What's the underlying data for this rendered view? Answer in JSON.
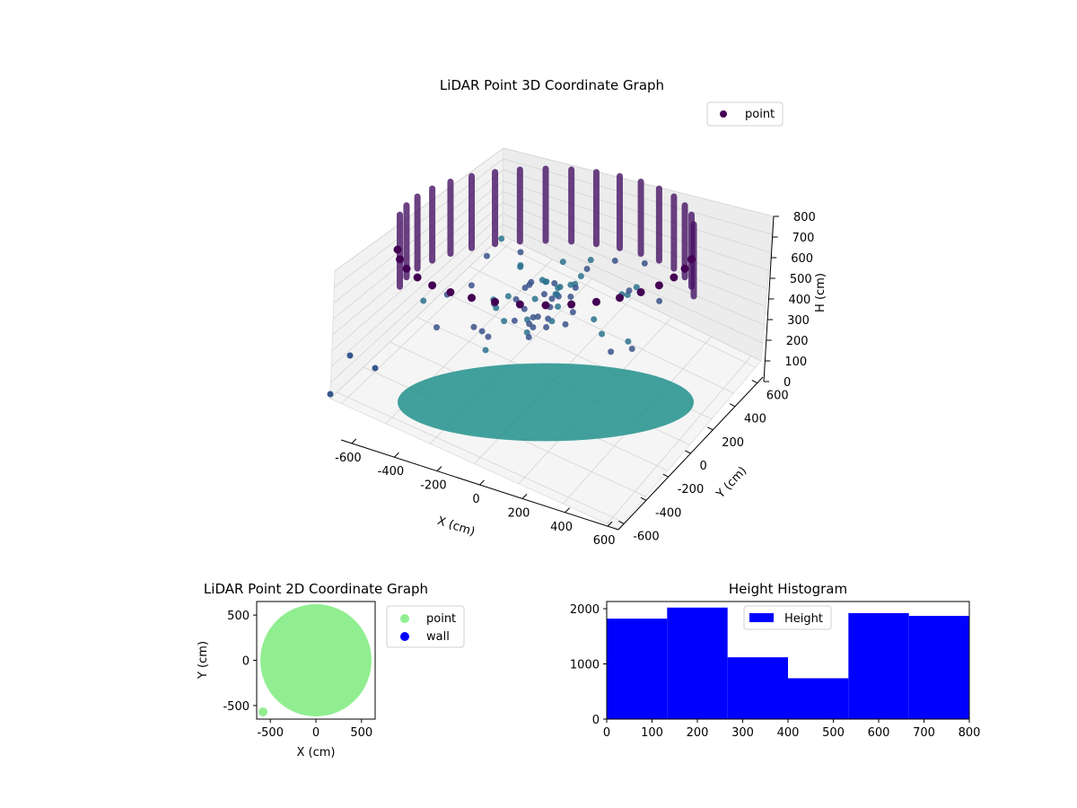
{
  "chart_data": [
    {
      "type": "scatter",
      "projection": "3d",
      "title": "LiDAR Point 3D Coordinate Graph",
      "xlabel": "X (cm)",
      "ylabel": "Y (cm)",
      "zlabel": "H (cm)",
      "xlim": [
        -650,
        650
      ],
      "ylim": [
        -650,
        650
      ],
      "zlim": [
        800,
        0
      ],
      "xticks": [
        -600,
        -400,
        -200,
        0,
        200,
        400,
        600
      ],
      "yticks": [
        -600,
        -400,
        -200,
        0,
        200,
        400,
        600
      ],
      "zticks": [
        0,
        100,
        200,
        300,
        400,
        500,
        600,
        700,
        800
      ],
      "grid": true,
      "legend": {
        "position": "upper-right",
        "entries": [
          "point"
        ]
      },
      "colormap": "viridis",
      "series": [
        {
          "name": "point",
          "color": "#440154",
          "shape": "cylindrical wall of points, radius ≈ 550 cm, H from 0 to 800 cm, ~36 vertical columns",
          "outlier_points": [
            {
              "x": -640,
              "y": -120,
              "h": 620
            },
            {
              "x": -560,
              "y": -40,
              "h": 640
            },
            {
              "x": -650,
              "y": -250,
              "h": 700
            }
          ]
        }
      ]
    },
    {
      "type": "scatter",
      "title": "LiDAR Point 2D Coordinate Graph",
      "xlabel": "X (cm)",
      "ylabel": "Y (cm)",
      "xlim": [
        -650,
        650
      ],
      "ylim": [
        -650,
        650
      ],
      "xticks": [
        -500,
        0,
        500
      ],
      "yticks": [
        -500,
        0,
        500
      ],
      "legend": {
        "position": "outside-right",
        "entries": [
          "point",
          "wall"
        ]
      },
      "series": [
        {
          "name": "point",
          "color": "#90ee90",
          "shape": "filled disc, radius ≈ 600 cm centred at (0, 0)"
        },
        {
          "name": "wall",
          "color": "#0000ff",
          "points": []
        }
      ]
    },
    {
      "type": "bar",
      "subtype": "histogram",
      "title": "Height Histogram",
      "xlim": [
        0,
        800
      ],
      "ylim": [
        0,
        2130
      ],
      "xticks": [
        0,
        100,
        200,
        300,
        400,
        500,
        600,
        700,
        800
      ],
      "yticks": [
        0,
        1000,
        2000
      ],
      "legend": {
        "position": "upper-center",
        "entries": [
          "Height"
        ]
      },
      "series": [
        {
          "name": "Height",
          "color": "#0000ff",
          "bin_edges": [
            0,
            133.3,
            266.7,
            400,
            533.3,
            666.7,
            800
          ],
          "values": [
            1820,
            2020,
            1120,
            740,
            1920,
            1870
          ]
        }
      ]
    }
  ]
}
